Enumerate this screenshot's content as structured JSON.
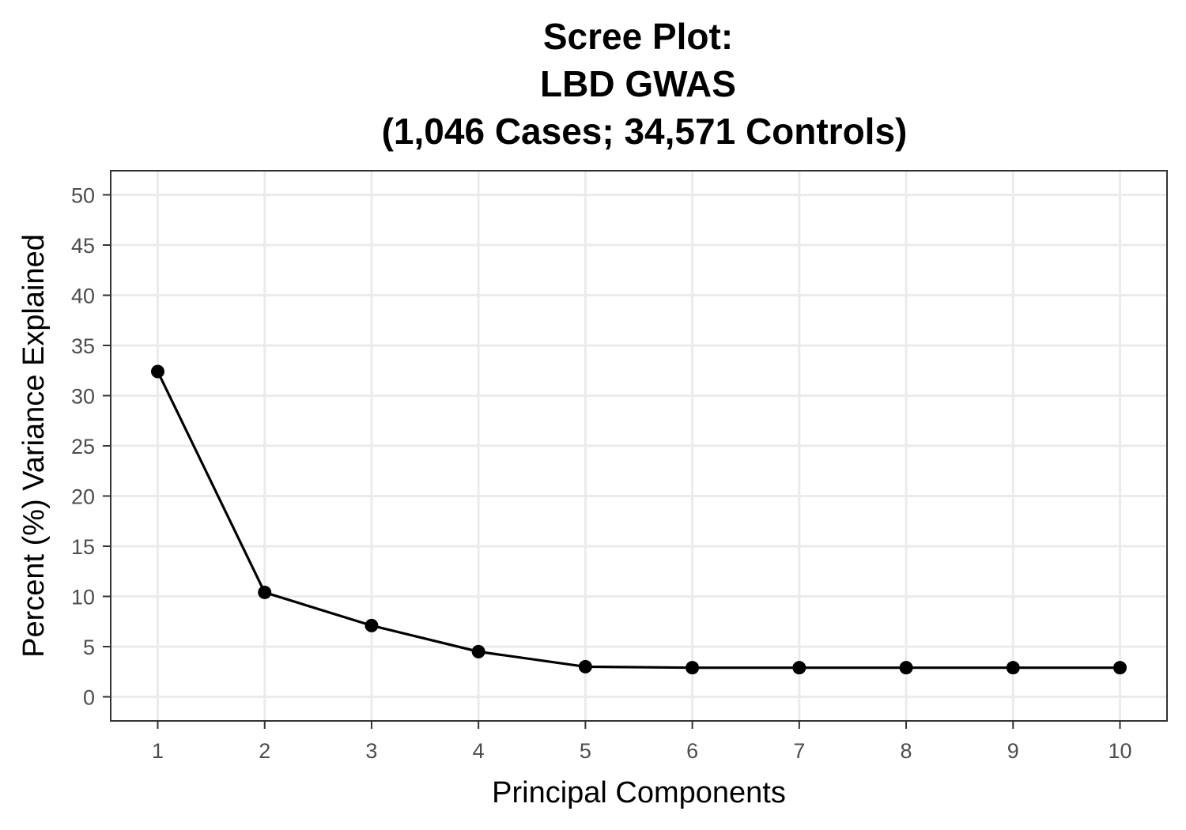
{
  "chart_data": {
    "type": "line",
    "title": [
      "Scree Plot:",
      "LBD GWAS",
      "(1,046 Cases; 34,571 Controls)"
    ],
    "xlabel": "Principal Components",
    "ylabel": "Percent (%) Variance Explained",
    "x": [
      1,
      2,
      3,
      4,
      5,
      6,
      7,
      8,
      9,
      10
    ],
    "x_ticks": [
      "1",
      "2",
      "3",
      "4",
      "5",
      "6",
      "7",
      "8",
      "9",
      "10"
    ],
    "y_ticks": [
      "0",
      "5",
      "10",
      "15",
      "20",
      "25",
      "30",
      "35",
      "40",
      "45",
      "50"
    ],
    "series": [
      {
        "values": [
          32.4,
          10.4,
          7.1,
          4.5,
          3.0,
          2.9,
          2.9,
          2.9,
          2.9,
          2.9
        ]
      }
    ],
    "xlim": [
      0.56,
      10.44
    ],
    "ylim": [
      -2.4,
      52.4
    ],
    "grid": true,
    "line_color": "#000000"
  }
}
